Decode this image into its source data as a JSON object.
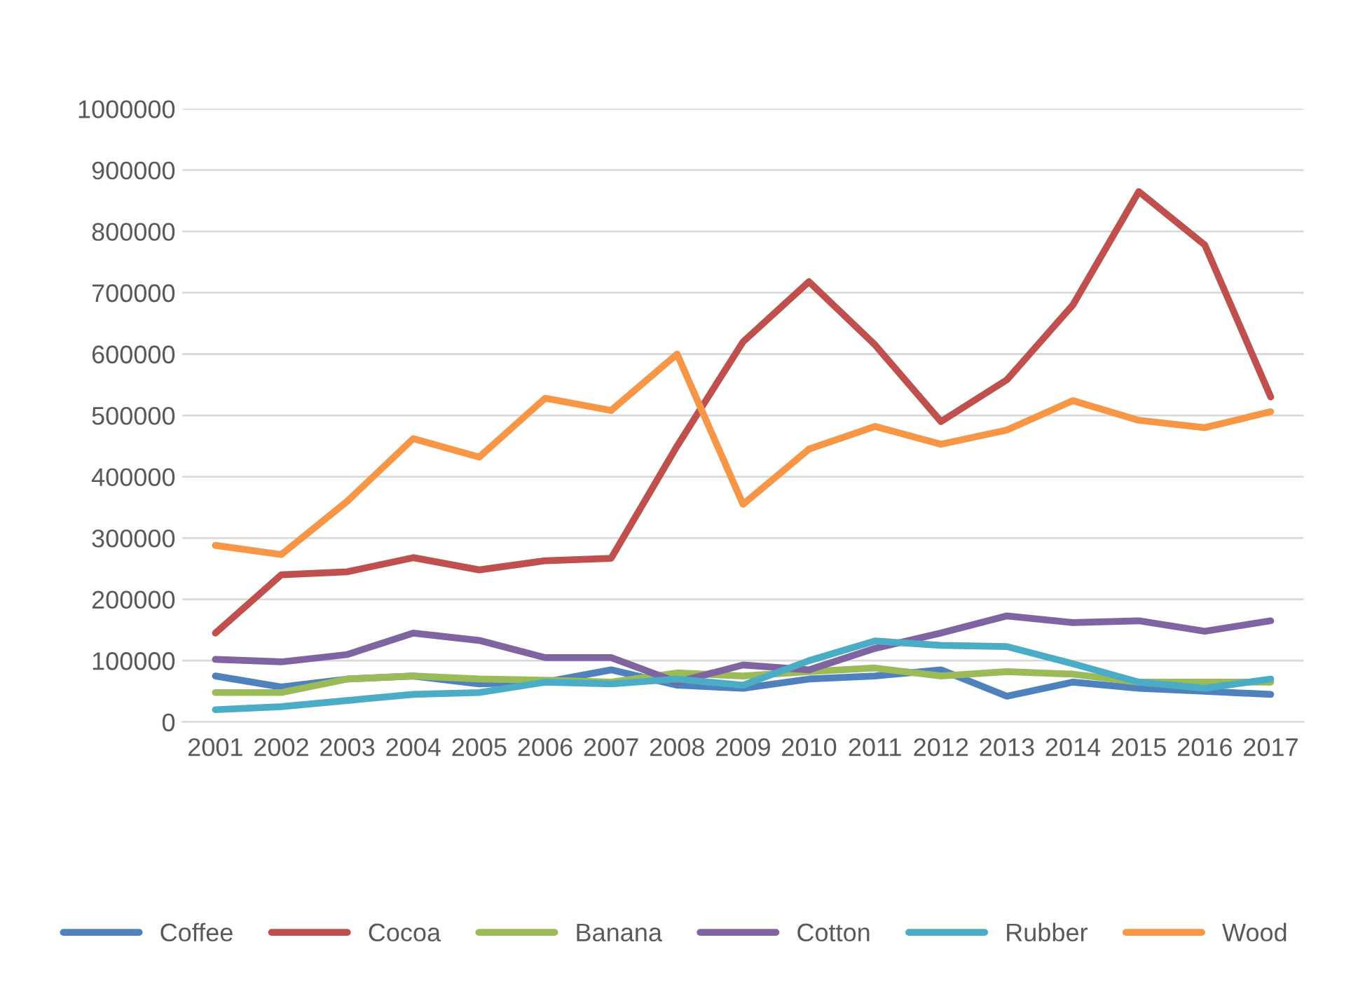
{
  "chart_data": {
    "type": "line",
    "categories": [
      "2001",
      "2002",
      "2003",
      "2004",
      "2005",
      "2006",
      "2007",
      "2008",
      "2009",
      "2010",
      "2011",
      "2012",
      "2013",
      "2014",
      "2015",
      "2016",
      "2017"
    ],
    "series": [
      {
        "name": "Coffee",
        "color": "#4f81bd",
        "values": [
          75000,
          57000,
          70000,
          75000,
          62000,
          65000,
          85000,
          60000,
          55000,
          70000,
          75000,
          85000,
          42000,
          65000,
          55000,
          50000,
          45000
        ]
      },
      {
        "name": "Cocoa",
        "color": "#c0504d",
        "values": [
          145000,
          240000,
          245000,
          268000,
          248000,
          263000,
          267000,
          450000,
          620000,
          718000,
          615000,
          490000,
          558000,
          680000,
          865000,
          778000,
          530000
        ]
      },
      {
        "name": "Banana",
        "color": "#9bbb59",
        "values": [
          48000,
          48000,
          70000,
          75000,
          70000,
          68000,
          65000,
          80000,
          75000,
          82000,
          88000,
          75000,
          82000,
          78000,
          65000,
          65000,
          65000
        ]
      },
      {
        "name": "Cotton",
        "color": "#8064a2",
        "values": [
          102000,
          98000,
          110000,
          145000,
          133000,
          105000,
          105000,
          65000,
          93000,
          85000,
          120000,
          145000,
          173000,
          162000,
          165000,
          148000,
          165000
        ]
      },
      {
        "name": "Rubber",
        "color": "#4bacc6",
        "values": [
          20000,
          25000,
          35000,
          45000,
          48000,
          65000,
          62000,
          70000,
          60000,
          100000,
          132000,
          125000,
          123000,
          95000,
          65000,
          55000,
          70000
        ]
      },
      {
        "name": "Wood",
        "color": "#f79646",
        "values": [
          288000,
          273000,
          360000,
          462000,
          432000,
          528000,
          508000,
          600000,
          355000,
          445000,
          482000,
          453000,
          476000,
          524000,
          492000,
          480000,
          506000
        ]
      }
    ],
    "ylim": [
      0,
      1000000
    ],
    "yticks": [
      0,
      100000,
      200000,
      300000,
      400000,
      500000,
      600000,
      700000,
      800000,
      900000,
      1000000
    ],
    "grid": "y",
    "legend": "bottom",
    "marker": "none",
    "line_style": "solid"
  }
}
